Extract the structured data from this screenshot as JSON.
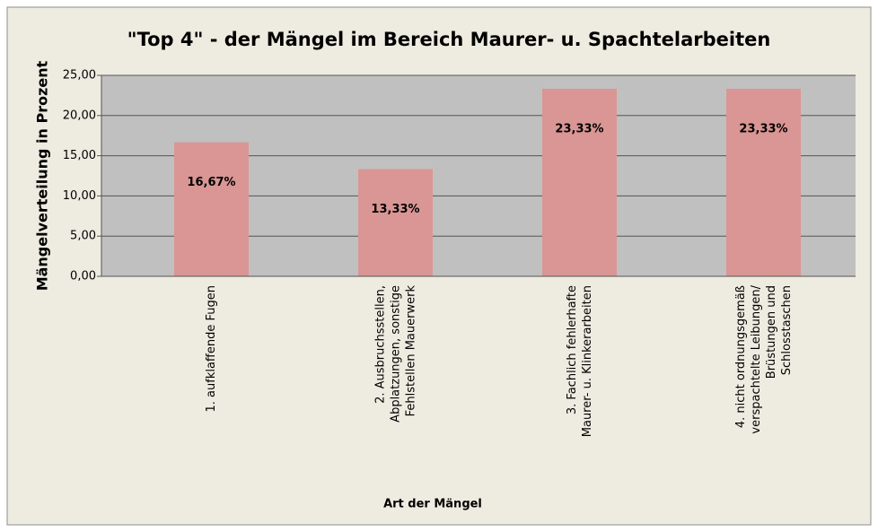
{
  "chart_data": {
    "type": "bar",
    "title": "\"Top 4\" - der Mängel im Bereich Maurer- u. Spachtelarbeiten",
    "x_label": "Art der Mängel",
    "y_label": "Mängelverteilung in Prozent",
    "categories": [
      "1. aufklaffende Fugen",
      "2. Ausbruchsstellen,\nAbplatzungen, sonstige\nFehlstellen Mauerwerk",
      "3. Fachlich fehlerhafte\nMaurer- u. Klinkerarbeiten",
      "4. nicht ordnungsgemäß\nverspachtelte Leibungen/\nBrüstungen und\nSchlosstaschen"
    ],
    "values": [
      16.67,
      13.33,
      23.33,
      23.33
    ],
    "value_labels": [
      "16,67%",
      "13,33%",
      "23,33%",
      "23,33%"
    ],
    "color": "#d99694",
    "ylim": [
      0,
      25
    ],
    "yticks": [
      {
        "value": 0,
        "label": "0,00"
      },
      {
        "value": 5,
        "label": "5,00"
      },
      {
        "value": 10,
        "label": "10,00"
      },
      {
        "value": 15,
        "label": "15,00"
      },
      {
        "value": 20,
        "label": "20,00"
      },
      {
        "value": 25,
        "label": "25,00"
      }
    ],
    "grid": true
  }
}
